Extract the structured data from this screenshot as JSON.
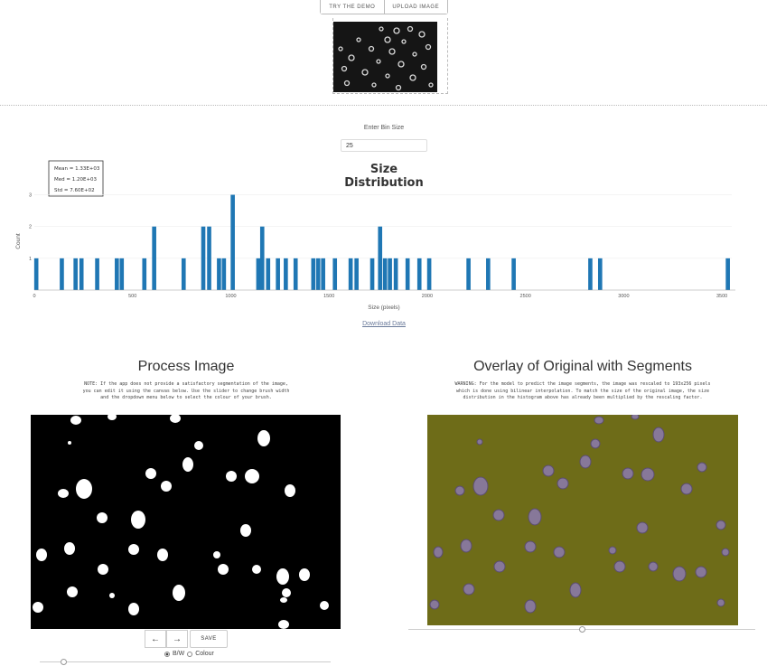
{
  "top_buttons": {
    "demo": "TRY THE DEMO",
    "upload": "UPLOAD IMAGE"
  },
  "bin": {
    "label": "Enter Bin Size",
    "value": "25"
  },
  "stats": {
    "mean": "Mean = 1.33E+03",
    "med": "Med = 1.20E+03",
    "std": "Std = 7.60E+02"
  },
  "download_label": "Download Data",
  "process": {
    "title": "Process Image",
    "note": [
      "NOTE: If the app does not provide a satisfactory segmentation of the image,",
      "you can edit it using the canvas below. Use the slider to change brush width",
      "and the dropdown menu below to select the colour of your brush."
    ],
    "save_label": "SAVE",
    "undo_icon": "←",
    "redo_icon": "→",
    "radio_bw": "B/W",
    "radio_colour": "Colour"
  },
  "overlay": {
    "title": "Overlay of Original with Segments",
    "note": [
      "WARNING: For the model to predict the image segments, the image was rescaled to 193x256 pixels",
      "which is done using bilinear interpolation. To match the size of the original image, the size",
      "distribution in the histogram above has already been multiplied by the rescaling factor."
    ]
  },
  "colors": {
    "bar": "#1f77b4",
    "overlay_bg": "#6e6c18",
    "overlay_blob": "#7a6a9a"
  },
  "chart_data": {
    "type": "bar",
    "title": "Size Distribution",
    "xlabel": "Size (pixels)",
    "ylabel": "Count",
    "xlim": [
      0,
      3550
    ],
    "ylim": [
      0,
      3.3
    ],
    "xticks": [
      0,
      500,
      1000,
      1500,
      2000,
      2500,
      3000,
      3500
    ],
    "yticks": [
      1,
      2,
      3
    ],
    "bin_width": 25,
    "bars": [
      {
        "x": 10,
        "y": 1
      },
      {
        "x": 140,
        "y": 1
      },
      {
        "x": 210,
        "y": 1
      },
      {
        "x": 240,
        "y": 1
      },
      {
        "x": 320,
        "y": 1
      },
      {
        "x": 420,
        "y": 1
      },
      {
        "x": 445,
        "y": 1
      },
      {
        "x": 560,
        "y": 1
      },
      {
        "x": 610,
        "y": 2
      },
      {
        "x": 760,
        "y": 1
      },
      {
        "x": 860,
        "y": 2
      },
      {
        "x": 890,
        "y": 2
      },
      {
        "x": 940,
        "y": 1
      },
      {
        "x": 965,
        "y": 1
      },
      {
        "x": 1010,
        "y": 3
      },
      {
        "x": 1140,
        "y": 1
      },
      {
        "x": 1160,
        "y": 2
      },
      {
        "x": 1190,
        "y": 1
      },
      {
        "x": 1240,
        "y": 1
      },
      {
        "x": 1280,
        "y": 1
      },
      {
        "x": 1330,
        "y": 1
      },
      {
        "x": 1420,
        "y": 1
      },
      {
        "x": 1445,
        "y": 1
      },
      {
        "x": 1470,
        "y": 1
      },
      {
        "x": 1530,
        "y": 1
      },
      {
        "x": 1610,
        "y": 1
      },
      {
        "x": 1640,
        "y": 1
      },
      {
        "x": 1720,
        "y": 1
      },
      {
        "x": 1760,
        "y": 2
      },
      {
        "x": 1785,
        "y": 1
      },
      {
        "x": 1810,
        "y": 1
      },
      {
        "x": 1840,
        "y": 1
      },
      {
        "x": 1900,
        "y": 1
      },
      {
        "x": 1960,
        "y": 1
      },
      {
        "x": 2010,
        "y": 1
      },
      {
        "x": 2210,
        "y": 1
      },
      {
        "x": 2310,
        "y": 1
      },
      {
        "x": 2440,
        "y": 1
      },
      {
        "x": 2830,
        "y": 1
      },
      {
        "x": 2880,
        "y": 1
      },
      {
        "x": 3530,
        "y": 1
      }
    ]
  }
}
